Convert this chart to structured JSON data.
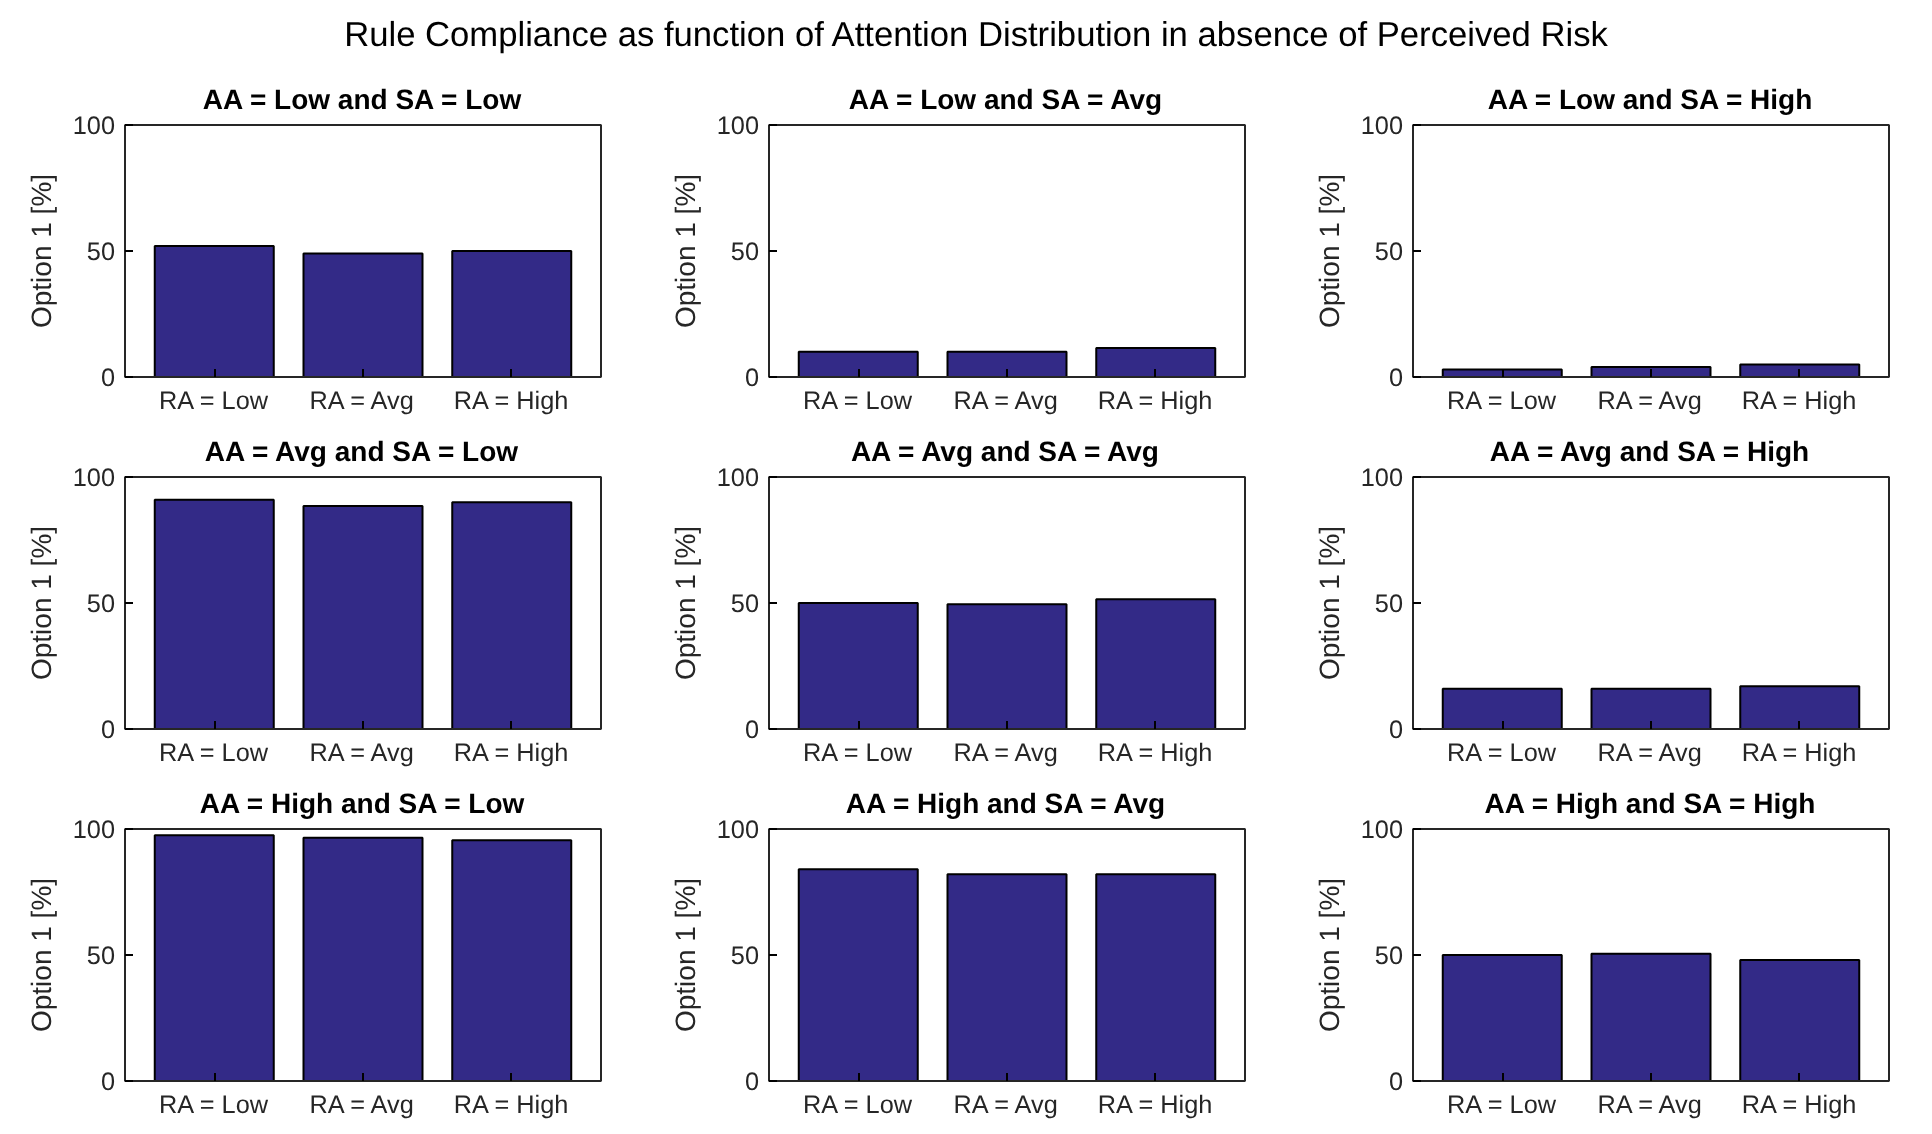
{
  "chart_data": [
    {
      "type": "bar",
      "title": "AA = Low and SA = Low",
      "annotations": [
        "Rule Compliance as function of Attention Distribution in absence of Perceived Risk"
      ],
      "ylabel": "Option 1 [%]",
      "categories": [
        "RA = Low",
        "RA = Avg",
        "RA = High"
      ],
      "values": [
        52,
        49,
        50
      ],
      "color": "#332a87",
      "ylim": [
        0,
        100
      ],
      "yticks": [
        0,
        50,
        100
      ],
      "grid": false
    },
    {
      "type": "bar",
      "title": "AA = Low and SA = Avg",
      "ylabel": "Option 1 [%]",
      "categories": [
        "RA = Low",
        "RA = Avg",
        "RA = High"
      ],
      "values": [
        10,
        10,
        11.5
      ],
      "color": "#332a87",
      "ylim": [
        0,
        100
      ],
      "yticks": [
        0,
        50,
        100
      ],
      "grid": false
    },
    {
      "type": "bar",
      "title": "AA = Low and SA = High",
      "ylabel": "Option 1 [%]",
      "categories": [
        "RA = Low",
        "RA = Avg",
        "RA = High"
      ],
      "values": [
        3,
        4,
        5
      ],
      "color": "#332a87",
      "ylim": [
        0,
        100
      ],
      "yticks": [
        0,
        50,
        100
      ],
      "grid": false
    },
    {
      "type": "bar",
      "title": "AA = Avg and SA = Low",
      "ylabel": "Option 1 [%]",
      "categories": [
        "RA = Low",
        "RA = Avg",
        "RA = High"
      ],
      "values": [
        91,
        88.5,
        90
      ],
      "color": "#332a87",
      "ylim": [
        0,
        100
      ],
      "yticks": [
        0,
        50,
        100
      ],
      "grid": false
    },
    {
      "type": "bar",
      "title": "AA = Avg and SA = Avg",
      "ylabel": "Option 1 [%]",
      "categories": [
        "RA = Low",
        "RA = Avg",
        "RA = High"
      ],
      "values": [
        50,
        49.5,
        51.5
      ],
      "color": "#332a87",
      "ylim": [
        0,
        100
      ],
      "yticks": [
        0,
        50,
        100
      ],
      "grid": false
    },
    {
      "type": "bar",
      "title": "AA = Avg and SA = High",
      "ylabel": "Option 1 [%]",
      "categories": [
        "RA = Low",
        "RA = Avg",
        "RA = High"
      ],
      "values": [
        16,
        16,
        17
      ],
      "color": "#332a87",
      "ylim": [
        0,
        100
      ],
      "yticks": [
        0,
        50,
        100
      ],
      "grid": false
    },
    {
      "type": "bar",
      "title": "AA = High and SA = Low",
      "ylabel": "Option 1 [%]",
      "categories": [
        "RA = Low",
        "RA = Avg",
        "RA = High"
      ],
      "values": [
        97.5,
        96.5,
        95.5
      ],
      "color": "#332a87",
      "ylim": [
        0,
        100
      ],
      "yticks": [
        0,
        50,
        100
      ],
      "grid": false
    },
    {
      "type": "bar",
      "title": "AA = High and SA = Avg",
      "ylabel": "Option 1 [%]",
      "categories": [
        "RA = Low",
        "RA = Avg",
        "RA = High"
      ],
      "values": [
        84,
        82,
        82
      ],
      "color": "#332a87",
      "ylim": [
        0,
        100
      ],
      "yticks": [
        0,
        50,
        100
      ],
      "grid": false
    },
    {
      "type": "bar",
      "title": "AA = High and SA = High",
      "ylabel": "Option 1 [%]",
      "categories": [
        "RA = Low",
        "RA = Avg",
        "RA = High"
      ],
      "values": [
        50,
        50.5,
        48
      ],
      "color": "#332a87",
      "ylim": [
        0,
        100
      ],
      "yticks": [
        0,
        50,
        100
      ],
      "grid": false
    }
  ]
}
